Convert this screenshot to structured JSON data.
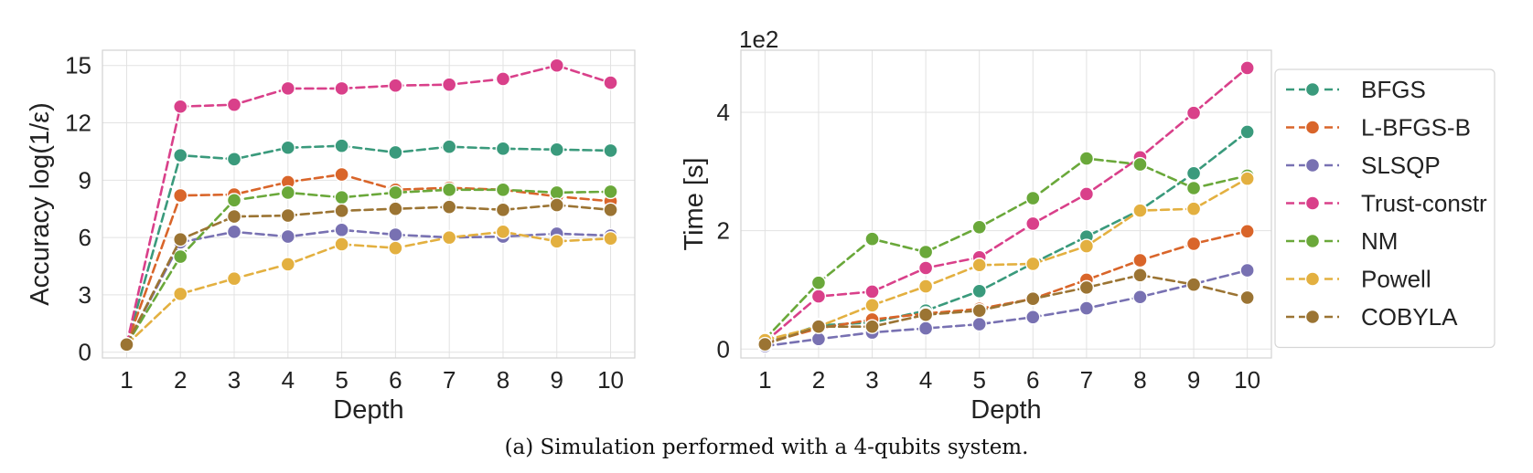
{
  "caption": "(a) Simulation performed with a 4-qubits system.",
  "colors": {
    "BFGS": "#3a9a7c",
    "L-BFGS-B": "#d9652a",
    "SLSQP": "#7871b2",
    "Trust-constr": "#d9408a",
    "NM": "#6aa83a",
    "Powell": "#e3b040",
    "COBYLA": "#9b7433"
  },
  "chart_data": [
    {
      "type": "line",
      "ylabel": "Accuracy log(1/ε)",
      "xlabel": "Depth",
      "x": [
        1,
        2,
        3,
        4,
        5,
        6,
        7,
        8,
        9,
        10
      ],
      "xlim": [
        0.55,
        10.45
      ],
      "ylim": [
        -0.3,
        15.8
      ],
      "yticks": [
        0,
        3,
        6,
        9,
        12,
        15
      ],
      "ytick_labels": [
        "0",
        "3",
        "6",
        "9",
        "12",
        "15"
      ],
      "grid": true,
      "series": [
        {
          "name": "BFGS",
          "values": [
            0.4,
            10.3,
            10.1,
            10.7,
            10.8,
            10.45,
            10.75,
            10.65,
            10.6,
            10.55
          ]
        },
        {
          "name": "L-BFGS-B",
          "values": [
            0.4,
            8.2,
            8.25,
            8.9,
            9.3,
            8.5,
            8.6,
            8.5,
            8.15,
            7.9
          ]
        },
        {
          "name": "SLSQP",
          "values": [
            0.4,
            5.75,
            6.3,
            6.05,
            6.4,
            6.15,
            6.0,
            6.05,
            6.2,
            6.1
          ]
        },
        {
          "name": "Trust-constr",
          "values": [
            0.4,
            12.85,
            12.95,
            13.8,
            13.8,
            13.95,
            14.0,
            14.3,
            15.0,
            14.1
          ]
        },
        {
          "name": "NM",
          "values": [
            0.4,
            5.0,
            7.95,
            8.35,
            8.1,
            8.35,
            8.5,
            8.5,
            8.35,
            8.4
          ]
        },
        {
          "name": "Powell",
          "values": [
            0.4,
            3.05,
            3.85,
            4.6,
            5.65,
            5.45,
            6.0,
            6.3,
            5.8,
            5.95
          ]
        },
        {
          "name": "COBYLA",
          "values": [
            0.4,
            5.9,
            7.1,
            7.15,
            7.4,
            7.5,
            7.6,
            7.45,
            7.7,
            7.45
          ]
        }
      ]
    },
    {
      "type": "line",
      "ylabel": "Time [s]",
      "xlabel": "Depth",
      "scale_label": "1e2",
      "x": [
        1,
        2,
        3,
        4,
        5,
        6,
        7,
        8,
        9,
        10
      ],
      "xlim": [
        0.55,
        10.45
      ],
      "ylim": [
        -0.15,
        5.05
      ],
      "yticks": [
        0,
        2,
        4
      ],
      "ytick_labels": [
        "0",
        "2",
        "4"
      ],
      "grid": true,
      "legend": "outside-right",
      "series": [
        {
          "name": "BFGS",
          "values": [
            0.1,
            0.4,
            0.45,
            0.65,
            0.98,
            1.45,
            1.9,
            2.35,
            2.97,
            3.67
          ]
        },
        {
          "name": "L-BFGS-B",
          "values": [
            0.1,
            0.35,
            0.5,
            0.6,
            0.68,
            0.85,
            1.17,
            1.5,
            1.78,
            1.99
          ]
        },
        {
          "name": "SLSQP",
          "values": [
            0.05,
            0.17,
            0.28,
            0.35,
            0.42,
            0.54,
            0.69,
            0.88,
            1.1,
            1.33
          ]
        },
        {
          "name": "Trust-constr",
          "values": [
            0.12,
            0.89,
            0.97,
            1.37,
            1.55,
            2.12,
            2.62,
            3.24,
            3.99,
            4.75
          ]
        },
        {
          "name": "NM",
          "values": [
            0.17,
            1.12,
            1.86,
            1.64,
            2.06,
            2.55,
            3.22,
            3.12,
            2.72,
            2.93
          ]
        },
        {
          "name": "Powell",
          "values": [
            0.15,
            0.38,
            0.74,
            1.06,
            1.42,
            1.44,
            1.74,
            2.34,
            2.37,
            2.88
          ]
        },
        {
          "name": "COBYLA",
          "values": [
            0.08,
            0.38,
            0.38,
            0.58,
            0.65,
            0.85,
            1.04,
            1.25,
            1.09,
            0.87
          ]
        }
      ]
    }
  ]
}
